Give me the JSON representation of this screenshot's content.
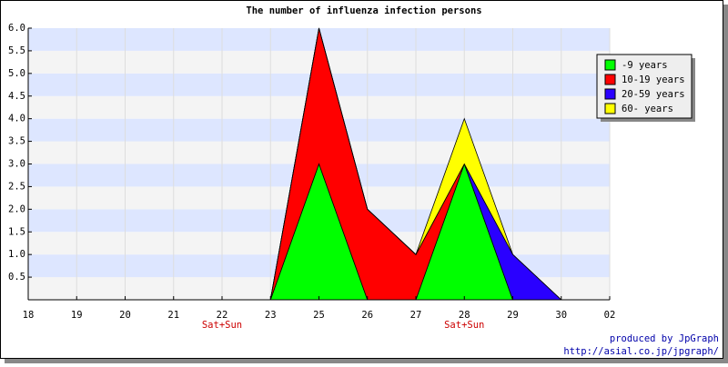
{
  "chart_data": {
    "type": "area",
    "stacked": true,
    "title": "The number of influenza infection persons",
    "categories": [
      "18",
      "19",
      "20",
      "21",
      "22",
      "23",
      "25",
      "26",
      "27",
      "28",
      "29",
      "30",
      "02"
    ],
    "series": [
      {
        "name": "-9 years",
        "color": "#00ff00",
        "values": [
          0,
          0,
          0,
          0,
          0,
          0,
          3,
          0,
          0,
          3,
          0,
          0,
          0
        ]
      },
      {
        "name": "10-19 years",
        "color": "#ff0000",
        "values": [
          0,
          0,
          0,
          0,
          0,
          0,
          3,
          2,
          1,
          0,
          0,
          0,
          0
        ]
      },
      {
        "name": "20-59 years",
        "color": "#2a00ff",
        "values": [
          0,
          0,
          0,
          0,
          0,
          0,
          0,
          0,
          0,
          0,
          1,
          0,
          0
        ]
      },
      {
        "name": "60- years",
        "color": "#ffff00",
        "values": [
          0,
          0,
          0,
          0,
          0,
          0,
          0,
          0,
          0,
          1,
          0,
          0,
          0
        ]
      }
    ],
    "ylim": [
      0,
      6
    ],
    "yticks": [
      {
        "value": 0.5,
        "label": "0.5"
      },
      {
        "value": 1,
        "label": "1.0"
      },
      {
        "value": 1.5,
        "label": "1.5"
      },
      {
        "value": 2,
        "label": "2.0"
      },
      {
        "value": 2.5,
        "label": "2.5"
      },
      {
        "value": 3,
        "label": "3.0"
      },
      {
        "value": 3.5,
        "label": "3.5"
      },
      {
        "value": 4,
        "label": "4.0"
      },
      {
        "value": 4.5,
        "label": "4.5"
      },
      {
        "value": 5,
        "label": "5.0"
      },
      {
        "value": 5.5,
        "label": "5.5"
      },
      {
        "value": 6,
        "label": "6.0"
      }
    ],
    "grid": true,
    "band_colors": [
      "#f4f4f4",
      "#dde6ff"
    ],
    "legend": "top-right",
    "annotations": [
      {
        "text": "Sat+Sun",
        "x": "22"
      },
      {
        "text": "Sat+Sun",
        "x": "28"
      }
    ],
    "credits": [
      "produced by JpGraph",
      "http://asial.co.jp/jpgraph/"
    ]
  }
}
